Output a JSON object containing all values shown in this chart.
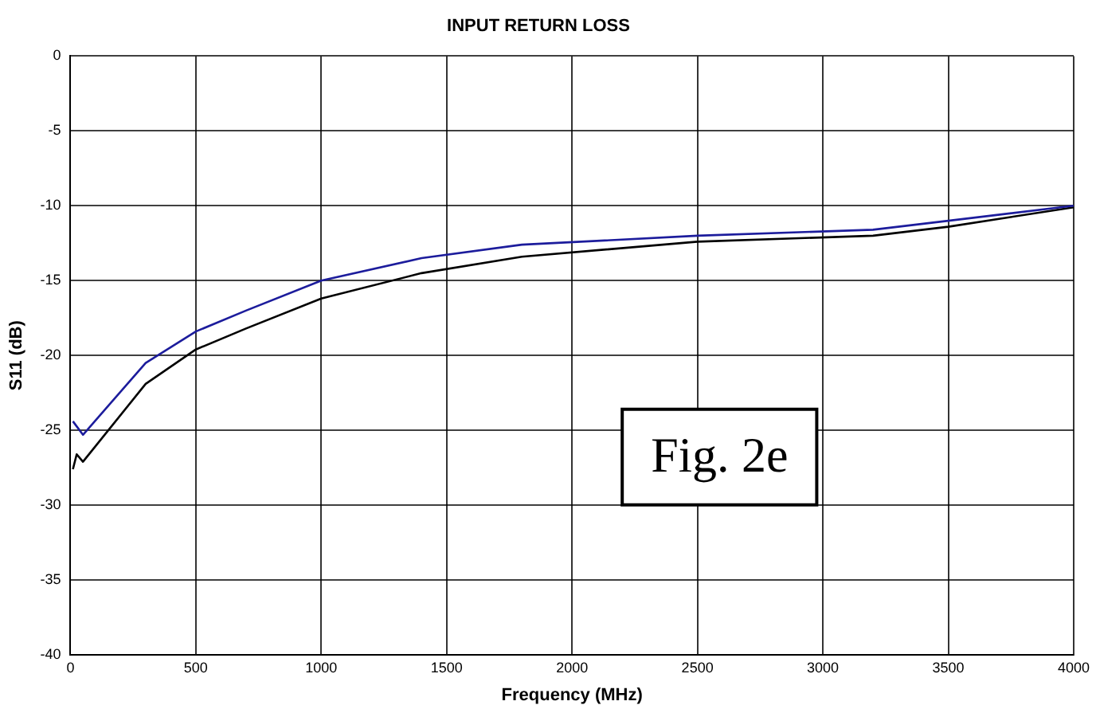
{
  "chart_data": {
    "type": "line",
    "title": "INPUT RETURN LOSS",
    "xlabel": "Frequency (MHz)",
    "ylabel": "S11 (dB)",
    "annotations": [
      "Fig. 2e"
    ],
    "xlim": [
      0,
      4000
    ],
    "xticks": [
      0,
      500,
      1000,
      1500,
      2000,
      2500,
      3000,
      3500,
      4000
    ],
    "ylim": [
      -40,
      0
    ],
    "yticks": [
      -40,
      -35,
      -30,
      -25,
      -20,
      -15,
      -10,
      -5,
      0
    ],
    "grid": true,
    "legend": false,
    "marker": "none",
    "line_style": "solid",
    "series": [
      {
        "color": "#1c1c9c",
        "x": [
          10,
          50,
          300,
          500,
          700,
          1000,
          1400,
          1800,
          2500,
          3200,
          3500,
          4000
        ],
        "values": [
          -24.4,
          -25.3,
          -20.5,
          -18.4,
          -17,
          -15,
          -13.5,
          -12.6,
          -12,
          -11.6,
          -11,
          -10
        ]
      },
      {
        "color": "#000000",
        "x": [
          10,
          25,
          50,
          300,
          500,
          700,
          1000,
          1400,
          1800,
          2500,
          3200,
          3500,
          4000
        ],
        "values": [
          -27.6,
          -26.6,
          -27.1,
          -21.9,
          -19.6,
          -18.2,
          -16.2,
          -14.5,
          -13.4,
          -12.4,
          -12,
          -11.4,
          -10.1
        ]
      }
    ]
  }
}
